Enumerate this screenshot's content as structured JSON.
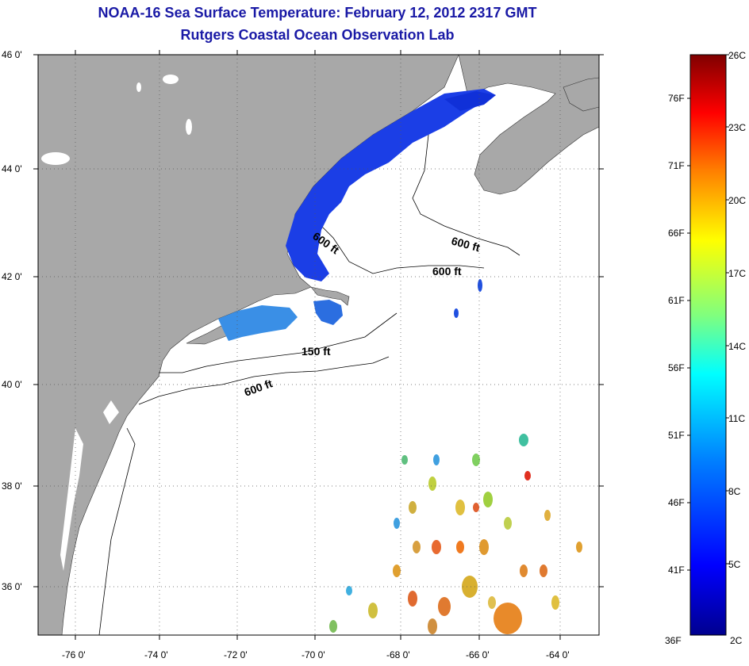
{
  "header": {
    "title": "NOAA-16 Sea Surface Temperature:  February 12, 2012 2317 GMT",
    "subtitle": "Rutgers Coastal Ocean Observation Lab"
  },
  "map": {
    "lon_range": [
      -77,
      -63
    ],
    "lat_range": [
      35,
      46
    ],
    "lon_ticks": [
      "-76 0'",
      "-74 0'",
      "-72 0'",
      "-70 0'",
      "-68 0'",
      "-66 0'",
      "-64 0'"
    ],
    "lat_ticks": [
      "46 0'",
      "44 0'",
      "42 0'",
      "40 0'",
      "38 0'",
      "36 0'"
    ],
    "grid": true,
    "land_color": "#a8a8a8",
    "ocean_color": "#ffffff",
    "contour_labels": [
      "600 ft",
      "600 ft",
      "600 ft",
      "150 ft",
      "600 ft"
    ]
  },
  "colorbar": {
    "min_label_f": "36F",
    "min_label_c": "2C",
    "f_labels": [
      "76F",
      "71F",
      "66F",
      "61F",
      "56F",
      "51F",
      "46F",
      "41F"
    ],
    "c_labels": [
      "26C",
      "23C",
      "20C",
      "17C",
      "14C",
      "11C",
      "8C",
      "5C"
    ],
    "colormap": [
      "#00008f",
      "#0000ff",
      "#007fff",
      "#00ffff",
      "#7fff7f",
      "#ffff00",
      "#ff7f00",
      "#ff0000",
      "#7f0000"
    ]
  }
}
